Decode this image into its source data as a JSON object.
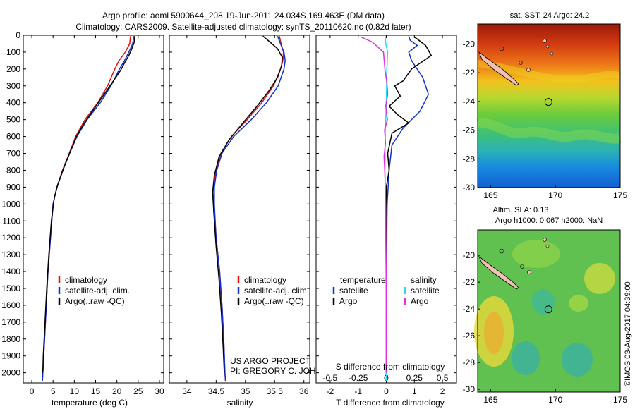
{
  "header": {
    "line1": "Argo profile: aoml 5900644_208 19-Jun-2011 24.034S 169.463E (DM data)",
    "line2": "Climatology: CARS2009. Satellite-adjusted climatology: synTS_20110620.nc (0.82d later)"
  },
  "colors": {
    "climatology": "#e01010",
    "satellite": "#1030d0",
    "argo": "#000000",
    "satellite_s": "#20e0f0",
    "argo_s": "#e030e0"
  },
  "chart_data": [
    {
      "type": "line",
      "name": "temperature",
      "xlabel": "temperature (deg C)",
      "xlim": [
        -2,
        31
      ],
      "ylim": [
        2060,
        0
      ],
      "xticks": [
        "0",
        "5",
        "10",
        "15",
        "20",
        "25",
        "30"
      ],
      "yticks": [
        "0",
        "100",
        "200",
        "300",
        "400",
        "500",
        "600",
        "700",
        "800",
        "900",
        "1000",
        "1100",
        "1200",
        "1300",
        "1400",
        "1500",
        "1600",
        "1700",
        "1800",
        "1900",
        "2000"
      ],
      "legend": [
        "climatology",
        "satellite-adj. clim.",
        "Argo(..raw -QC)"
      ],
      "series": [
        {
          "name": "climatology",
          "color_key": "climatology",
          "points": [
            [
              23.2,
              5
            ],
            [
              23.0,
              50
            ],
            [
              22.0,
              100
            ],
            [
              20.5,
              150
            ],
            [
              19.5,
              200
            ],
            [
              17.8,
              300
            ],
            [
              15.5,
              400
            ],
            [
              12.5,
              500
            ],
            [
              10.3,
              600
            ],
            [
              8.8,
              700
            ],
            [
              7.2,
              800
            ],
            [
              5.9,
              900
            ],
            [
              5.0,
              1000
            ],
            [
              4.4,
              1200
            ],
            [
              3.8,
              1400
            ],
            [
              3.4,
              1600
            ],
            [
              3.0,
              1800
            ],
            [
              2.6,
              2000
            ],
            [
              2.5,
              2050
            ]
          ]
        },
        {
          "name": "satellite-adj. clim.",
          "color_key": "satellite",
          "points": [
            [
              24.0,
              5
            ],
            [
              23.7,
              50
            ],
            [
              22.8,
              100
            ],
            [
              21.8,
              150
            ],
            [
              20.6,
              200
            ],
            [
              18.6,
              300
            ],
            [
              16.1,
              400
            ],
            [
              13.0,
              500
            ],
            [
              10.6,
              600
            ],
            [
              8.9,
              700
            ],
            [
              7.3,
              800
            ],
            [
              5.9,
              900
            ],
            [
              5.0,
              1000
            ],
            [
              4.4,
              1200
            ],
            [
              3.8,
              1400
            ],
            [
              3.4,
              1600
            ],
            [
              3.0,
              1800
            ],
            [
              2.6,
              2000
            ],
            [
              2.5,
              2050
            ]
          ]
        },
        {
          "name": "Argo(..raw -QC)",
          "color_key": "argo",
          "points": [
            [
              24.2,
              5
            ],
            [
              24.1,
              40
            ],
            [
              23.5,
              80
            ],
            [
              22.8,
              120
            ],
            [
              21.9,
              160
            ],
            [
              20.8,
              210
            ],
            [
              19.2,
              270
            ],
            [
              17.0,
              350
            ],
            [
              14.8,
              430
            ],
            [
              12.6,
              510
            ],
            [
              10.7,
              590
            ],
            [
              9.2,
              680
            ],
            [
              7.6,
              780
            ],
            [
              6.2,
              880
            ],
            [
              5.3,
              960
            ],
            [
              4.6,
              1100
            ],
            [
              4.0,
              1300
            ],
            [
              3.5,
              1500
            ],
            [
              3.1,
              1700
            ],
            [
              2.7,
              1900
            ],
            [
              2.6,
              2000
            ]
          ]
        }
      ]
    },
    {
      "type": "line",
      "name": "salinity",
      "xlabel": "salinity",
      "xlim": [
        33.7,
        36.1
      ],
      "ylim": [
        2060,
        0
      ],
      "xticks": [
        "34",
        "34.5",
        "35",
        "35.5",
        "36"
      ],
      "legend": [
        "climatology",
        "satellite-adj. clim.",
        "Argo(..raw -QC)"
      ],
      "series": [
        {
          "name": "climatology",
          "color_key": "climatology",
          "points": [
            [
              35.58,
              5
            ],
            [
              35.61,
              50
            ],
            [
              35.65,
              100
            ],
            [
              35.64,
              150
            ],
            [
              35.6,
              200
            ],
            [
              35.48,
              300
            ],
            [
              35.28,
              400
            ],
            [
              35.03,
              500
            ],
            [
              34.76,
              600
            ],
            [
              34.58,
              700
            ],
            [
              34.5,
              800
            ],
            [
              34.46,
              900
            ],
            [
              34.46,
              1000
            ],
            [
              34.5,
              1200
            ],
            [
              34.56,
              1400
            ],
            [
              34.6,
              1600
            ],
            [
              34.63,
              1800
            ],
            [
              34.65,
              2000
            ],
            [
              34.66,
              2050
            ]
          ]
        },
        {
          "name": "satellite-adj. clim.",
          "color_key": "satellite",
          "points": [
            [
              35.55,
              5
            ],
            [
              35.6,
              50
            ],
            [
              35.66,
              100
            ],
            [
              35.68,
              150
            ],
            [
              35.66,
              200
            ],
            [
              35.56,
              300
            ],
            [
              35.36,
              400
            ],
            [
              35.1,
              500
            ],
            [
              34.8,
              600
            ],
            [
              34.6,
              700
            ],
            [
              34.51,
              800
            ],
            [
              34.47,
              900
            ],
            [
              34.47,
              1000
            ],
            [
              34.5,
              1200
            ],
            [
              34.56,
              1400
            ],
            [
              34.6,
              1600
            ],
            [
              34.63,
              1800
            ],
            [
              34.65,
              2000
            ],
            [
              34.66,
              2050
            ]
          ]
        },
        {
          "name": "Argo(..raw -QC)",
          "color_key": "argo",
          "points": [
            [
              35.3,
              5
            ],
            [
              35.42,
              40
            ],
            [
              35.55,
              80
            ],
            [
              35.63,
              130
            ],
            [
              35.62,
              180
            ],
            [
              35.55,
              250
            ],
            [
              35.4,
              330
            ],
            [
              35.2,
              420
            ],
            [
              34.98,
              510
            ],
            [
              34.72,
              620
            ],
            [
              34.55,
              720
            ],
            [
              34.47,
              830
            ],
            [
              34.44,
              930
            ],
            [
              34.46,
              1050
            ],
            [
              34.5,
              1250
            ],
            [
              34.55,
              1450
            ],
            [
              34.59,
              1650
            ],
            [
              34.62,
              1850
            ],
            [
              34.64,
              2000
            ]
          ]
        }
      ]
    },
    {
      "type": "line",
      "name": "differences",
      "xlabel": "T difference from climatology",
      "xlabel_top": "S difference from climatology",
      "xlim": [
        -2.5,
        2.5
      ],
      "ylim": [
        2060,
        0
      ],
      "xticks": [
        "-2",
        "-1",
        "0",
        "1",
        "2"
      ],
      "sticks": [
        "-0.5",
        "-0.25",
        "0",
        "0.25",
        "0.5"
      ],
      "legend_t_title": "temperature",
      "legend_s_title": "salinity",
      "legend_t": [
        "satellite",
        "Argo"
      ],
      "legend_s": [
        "satellite",
        "Argo"
      ],
      "series": [
        {
          "name": "T satellite",
          "color_key": "satellite",
          "points": [
            [
              0.8,
              5
            ],
            [
              0.85,
              30
            ],
            [
              1.1,
              60
            ],
            [
              0.8,
              100
            ],
            [
              0.9,
              150
            ],
            [
              1.3,
              250
            ],
            [
              1.5,
              350
            ],
            [
              1.2,
              450
            ],
            [
              0.6,
              550
            ],
            [
              0.2,
              650
            ],
            [
              0.1,
              800
            ],
            [
              0.03,
              1000
            ],
            [
              0.0,
              1500
            ],
            [
              0.0,
              2050
            ]
          ]
        },
        {
          "name": "T Argo",
          "color_key": "argo",
          "points": [
            [
              1.0,
              10
            ],
            [
              1.4,
              60
            ],
            [
              1.6,
              120
            ],
            [
              0.9,
              200
            ],
            [
              0.6,
              270
            ],
            [
              0.3,
              300
            ],
            [
              0.5,
              360
            ],
            [
              0.1,
              420
            ],
            [
              0.4,
              470
            ],
            [
              0.8,
              520
            ],
            [
              0.2,
              580
            ],
            [
              0.05,
              700
            ],
            [
              0.1,
              800
            ],
            [
              0.0,
              900
            ],
            [
              0.02,
              1200
            ],
            [
              0.0,
              1500
            ],
            [
              0.02,
              1800
            ],
            [
              0.0,
              2000
            ]
          ]
        },
        {
          "name": "S satellite",
          "color_key": "satellite_s",
          "points": [
            [
              -0.04,
              5
            ],
            [
              -0.02,
              50
            ],
            [
              0.05,
              100
            ],
            [
              0.02,
              200
            ],
            [
              0.01,
              300
            ],
            [
              0.0,
              400
            ],
            [
              -0.02,
              500
            ],
            [
              -0.04,
              600
            ],
            [
              -0.05,
              800
            ],
            [
              -0.03,
              1000
            ],
            [
              -0.01,
              1400
            ],
            [
              0.0,
              1800
            ],
            [
              0.0,
              2050
            ]
          ]
        },
        {
          "name": "S Argo",
          "color_key": "argo_s",
          "points": [
            [
              -0.9,
              10
            ],
            [
              -0.5,
              40
            ],
            [
              -0.1,
              100
            ],
            [
              -0.05,
              200
            ],
            [
              0.02,
              280
            ],
            [
              0.05,
              350
            ],
            [
              -0.02,
              420
            ],
            [
              0.04,
              500
            ],
            [
              -0.06,
              560
            ],
            [
              -0.03,
              640
            ],
            [
              -0.08,
              720
            ],
            [
              -0.05,
              820
            ],
            [
              -0.03,
              950
            ],
            [
              -0.02,
              1100
            ],
            [
              -0.01,
              1300
            ],
            [
              0.0,
              1500
            ],
            [
              0.0,
              1800
            ],
            [
              0.0,
              2000
            ]
          ]
        }
      ]
    }
  ],
  "credits": {
    "line1": "US ARGO PROJECT",
    "line2": "PI: GREGORY C. JOHNSON"
  },
  "maps": {
    "sst": {
      "title": "sat. SST: 24 Argo: 24.2",
      "xticks": [
        "165",
        "170",
        "175"
      ],
      "yticks": [
        "-20",
        "-22",
        "-24",
        "-26",
        "-28",
        "-30"
      ],
      "profile_lon": 169.463,
      "profile_lat": -24.034,
      "lon_range": [
        164,
        175
      ],
      "lat_range": [
        -30,
        -18.6
      ]
    },
    "sla": {
      "title_line1": "Altim. SLA: 0.13",
      "title_line2": "Argo h1000: 0.067 h2000: NaN",
      "xticks": [
        "165",
        "170",
        "175"
      ],
      "yticks": [
        "-20",
        "-22",
        "-24",
        "-26",
        "-28",
        "-30"
      ],
      "profile_lon": 169.463,
      "profile_lat": -24.034,
      "lon_range": [
        164,
        175
      ],
      "lat_range": [
        -30.2,
        -18.1
      ]
    }
  },
  "timestamp": "©IMOS 03-Aug-2017 04:39:00"
}
